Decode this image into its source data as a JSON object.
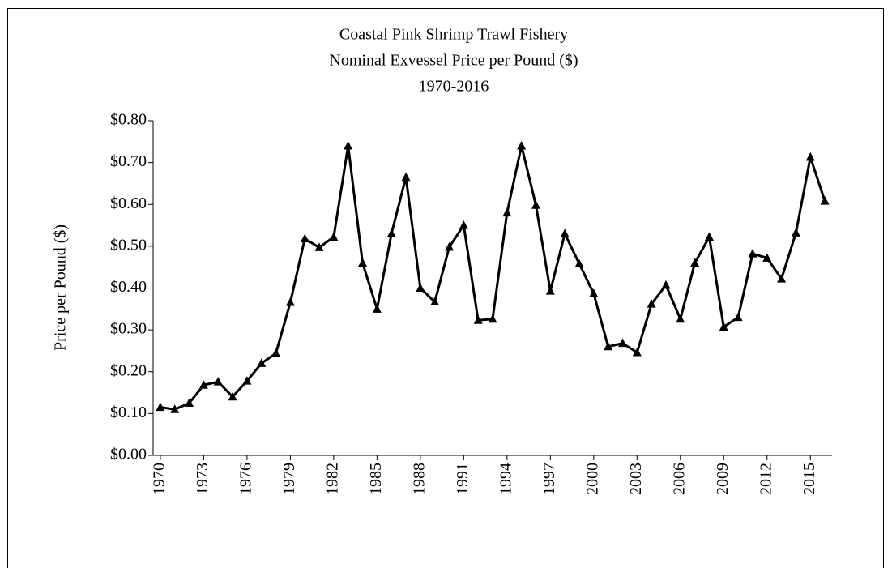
{
  "chart_data": {
    "type": "line",
    "title": [
      "Coastal Pink Shrimp Trawl Fishery",
      "Nominal Exvessel Price per Pound ($)",
      "1970-2016"
    ],
    "y_label": "Price per Pound ($)",
    "x": [
      1970,
      1971,
      1972,
      1973,
      1974,
      1975,
      1976,
      1977,
      1978,
      1979,
      1980,
      1981,
      1982,
      1983,
      1984,
      1985,
      1986,
      1987,
      1988,
      1989,
      1990,
      1991,
      1992,
      1993,
      1994,
      1995,
      1996,
      1997,
      1998,
      1999,
      2000,
      2001,
      2002,
      2003,
      2004,
      2005,
      2006,
      2007,
      2008,
      2009,
      2010,
      2011,
      2012,
      2013,
      2014,
      2015,
      2016
    ],
    "series": [
      {
        "name": "Price per Pound",
        "color": "#000000",
        "marker": "triangle",
        "values": [
          0.115,
          0.11,
          0.125,
          0.168,
          0.176,
          0.14,
          0.178,
          0.22,
          0.244,
          0.366,
          0.518,
          0.497,
          0.522,
          0.74,
          0.46,
          0.35,
          0.53,
          0.665,
          0.4,
          0.367,
          0.498,
          0.55,
          0.323,
          0.326,
          0.58,
          0.74,
          0.598,
          0.393,
          0.53,
          0.458,
          0.387,
          0.26,
          0.268,
          0.246,
          0.362,
          0.407,
          0.326,
          0.46,
          0.522,
          0.307,
          0.33,
          0.482,
          0.472,
          0.422,
          0.532,
          0.713,
          0.608
        ]
      }
    ],
    "xlim": [
      1969.5,
      2016.5
    ],
    "xticks": [
      1970,
      1973,
      1976,
      1979,
      1982,
      1985,
      1988,
      1991,
      1994,
      1997,
      2000,
      2003,
      2006,
      2009,
      2012,
      2015
    ],
    "ylim": [
      0,
      0.8
    ],
    "yticks": [
      {
        "value": 0,
        "label": "$0.00"
      },
      {
        "value": 0.1,
        "label": "$0.10"
      },
      {
        "value": 0.2,
        "label": "$0.20"
      },
      {
        "value": 0.3,
        "label": "$0.30"
      },
      {
        "value": 0.4,
        "label": "$0.40"
      },
      {
        "value": 0.5,
        "label": "$0.50"
      },
      {
        "value": 0.6,
        "label": "$0.60"
      },
      {
        "value": 0.7,
        "label": "$0.70"
      },
      {
        "value": 0.8,
        "label": "$0.80"
      }
    ],
    "grid": false
  }
}
